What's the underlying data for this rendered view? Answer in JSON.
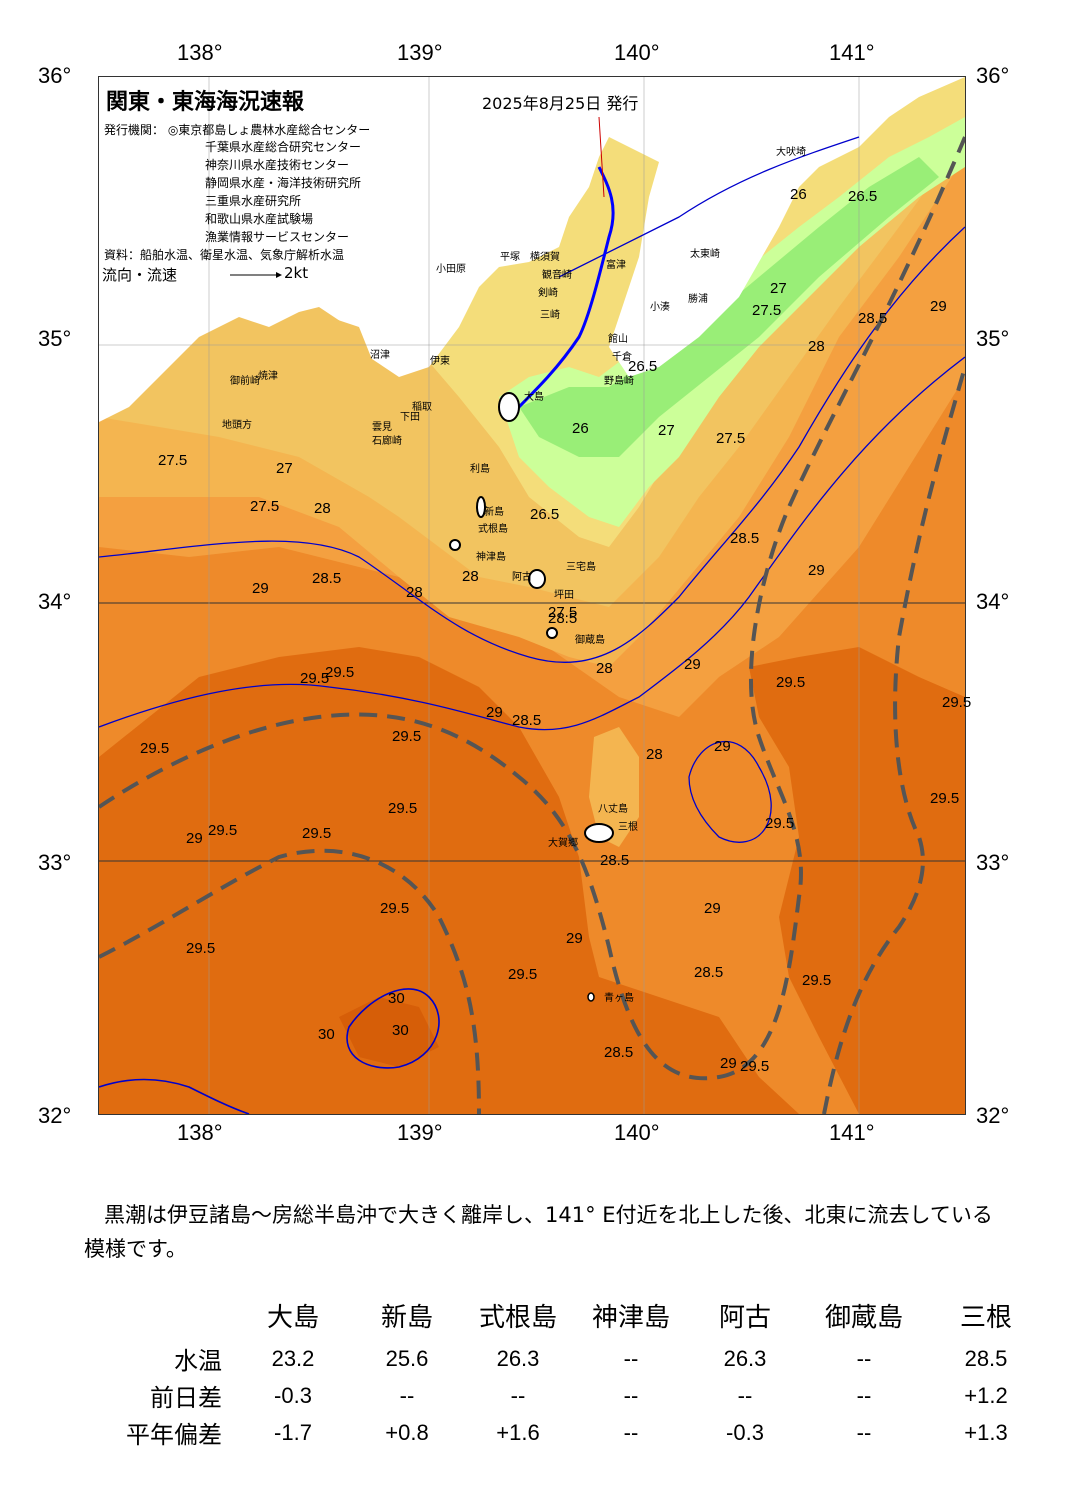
{
  "map": {
    "title": "関東・東海海況速報",
    "date": "2025年8月25日 発行",
    "issuers": [
      "発行機関：  ◎東京都島しょ農林水産総合センター",
      "千葉県水産総合研究センター",
      "神奈川県水産技術センター",
      "静岡県水産・海洋技術研究所",
      "三重県水産研究所",
      "和歌山県水産試験場",
      "漁業情報サービスセンター"
    ],
    "source": "資料：船舶水温、衛星水温、気象庁解析水温",
    "flow_label": "流向・流速",
    "flow_unit": "2kt",
    "lon_labels": [
      "138°",
      "139°",
      "140°",
      "141°"
    ],
    "lat_labels": [
      "36°",
      "35°",
      "34°",
      "33°",
      "32°"
    ],
    "places": [
      "大吠埼",
      "太東崎",
      "勝浦",
      "小湊",
      "館山",
      "千倉",
      "野島崎",
      "富津",
      "横須賀",
      "観音崎",
      "平塚",
      "小田原",
      "剣崎",
      "三崎",
      "沼津",
      "伊東",
      "焼津",
      "御前崎",
      "地頭方",
      "石廊崎",
      "下田",
      "稲取",
      "雲見",
      "大島",
      "利島",
      "新島",
      "式根島",
      "神津島",
      "三宅島",
      "阿古",
      "坪田",
      "御蔵島",
      "八丈島",
      "三根",
      "大賀郷",
      "青ヶ島"
    ],
    "isotherm_labels": [
      "26",
      "26.5",
      "27.5",
      "27",
      "28.5",
      "29",
      "26.5",
      "26",
      "27.5",
      "28",
      "27",
      "26.5",
      "27.5",
      "27",
      "27.5",
      "28",
      "28.5",
      "29",
      "28.5",
      "29",
      "29.5",
      "29.5",
      "29.5",
      "29.5",
      "29",
      "28",
      "28.5",
      "28",
      "28.5",
      "29",
      "29.5",
      "28",
      "29",
      "29.5",
      "29.5",
      "28.5",
      "29.5",
      "29.5",
      "29",
      "29.5",
      "29.5",
      "29",
      "30",
      "30",
      "30",
      "29.5",
      "29",
      "28.5",
      "29.5",
      "29.5",
      "29.5",
      "27.5",
      "28",
      "29",
      "29.5",
      "28.5"
    ],
    "legend_colors": {
      "lt26": "#ccff99",
      "26": "#99ee77",
      "27": "#f4dd7a",
      "27_5": "#f2c460",
      "28": "#f4b550",
      "28_5": "#f4a040",
      "29": "#ee8a2a",
      "29_5": "#e06c10",
      "land": "#ffffff",
      "kuroshio_axis": "#555555",
      "contour": "#0000cc"
    }
  },
  "summary": "黒潮は伊豆諸島～房総半島沖で大きく離岸し、141° E付近を北上した後、北東に流去している模様です。",
  "table": {
    "columns": [
      "大島",
      "新島",
      "式根島",
      "神津島",
      "阿古",
      "御蔵島",
      "三根"
    ],
    "rows": [
      {
        "label": "水温",
        "values": [
          "23.2",
          "25.6",
          "26.3",
          "--",
          "26.3",
          "--",
          "28.5"
        ]
      },
      {
        "label": "前日差",
        "values": [
          "-0.3",
          "--",
          "--",
          "--",
          "--",
          "--",
          "+1.2"
        ]
      },
      {
        "label": "平年偏差",
        "values": [
          "-1.7",
          "+0.8",
          "+1.6",
          "--",
          "-0.3",
          "--",
          "+1.3"
        ]
      }
    ]
  }
}
